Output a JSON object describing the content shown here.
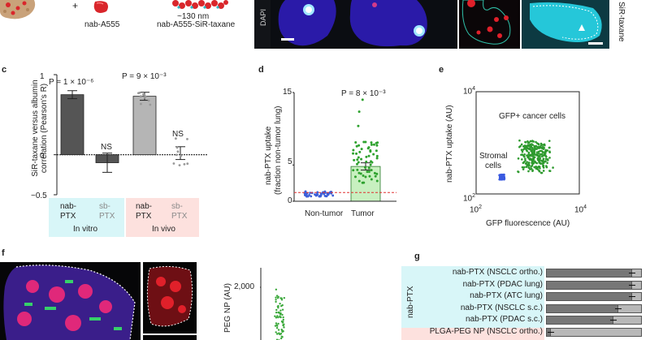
{
  "top": {
    "plus": "+",
    "label_a555": "nab-A555",
    "label_size": "~130 nm",
    "label_sir": "nab-A555-SiR-taxane",
    "dapi": "DAPI",
    "sir_side": "SiR-taxane",
    "colors": {
      "particle": "#d9262b",
      "blue_cell": "#2a1aa8",
      "dark_bg": "#121418",
      "cyan": "#25c7d9"
    }
  },
  "panel_c": {
    "letter": "c",
    "ylabel": "SiR-taxane versus albumin correlation (Pearson's R)",
    "p1": "P = 1 × 10⁻⁶",
    "p2": "P = 9 × 10⁻³",
    "ns1": "NS",
    "ns2": "NS",
    "groups": [
      {
        "l1": "nab-",
        "l2": "PTX"
      },
      {
        "l1": "sb-",
        "l2": "PTX"
      },
      {
        "l1": "nab-",
        "l2": "PTX"
      },
      {
        "l1": "sb-",
        "l2": "PTX"
      }
    ],
    "in_vitro": "In vitro",
    "in_vivo": "In vivo",
    "colors": {
      "in_vitro_bg": "#d8f6f8",
      "in_vivo_bg": "#fde1de",
      "bar_dark": "#555555",
      "bar_light": "#b5b5b5"
    },
    "chart_data": {
      "type": "bar",
      "categories": [
        "nab-PTX in vitro",
        "sb-PTX in vitro",
        "nab-PTX in vivo",
        "sb-PTX in vivo"
      ],
      "values": [
        0.75,
        -0.1,
        0.73,
        0.02
      ],
      "ylim": [
        -0.5,
        1
      ],
      "yticks": [
        "1",
        "0",
        "−0.5"
      ]
    }
  },
  "panel_d": {
    "letter": "d",
    "ylabel1": "nab-PTX uptake",
    "ylabel2": "(fraction non-tumor lung)",
    "p": "P = 8 × 10⁻³",
    "categories": [
      "Non-tumor",
      "Tumor"
    ],
    "yticks": [
      "15",
      "5",
      "0"
    ],
    "colors": {
      "non_tumor": "#3c5fd9",
      "tumor": "#2ea22e",
      "tumor_bar": "#c8f0c0",
      "threshold": "#e03030"
    },
    "chart_data": {
      "type": "bar",
      "categories": [
        "Non-tumor",
        "Tumor"
      ],
      "values": [
        1.0,
        4.8
      ],
      "ylim": [
        0,
        15
      ]
    }
  },
  "panel_e": {
    "letter": "e",
    "ylabel": "nab-PTX uptake (AU)",
    "xlabel": "GFP fluorescence (AU)",
    "cluster1": "GFP+ cancer cells",
    "cluster2a": "Stromal",
    "cluster2b": "cells",
    "yticks": {
      "top": "4",
      "bottom": "2"
    },
    "xticks": {
      "left": "2",
      "right": "4"
    },
    "tick_base": "10",
    "colors": {
      "gfp": "#2e9a2e",
      "stromal": "#3a5ae0"
    },
    "chart_data": {
      "type": "scatter",
      "series": [
        {
          "name": "GFP+ cancer cells",
          "x": [
            1000,
            1500,
            2000,
            2500,
            3000
          ],
          "y": [
            400,
            600,
            700,
            650,
            500
          ]
        },
        {
          "name": "Stromal cells",
          "x": [
            300,
            320,
            340
          ],
          "y": [
            220,
            230,
            240
          ]
        }
      ]
    }
  },
  "panel_f": {
    "letter": "f",
    "ylabel": "PEG NP (AU)",
    "ytick": "2,000"
  },
  "panel_g": {
    "letter": "g",
    "group_label": "nab-PTX",
    "rows": [
      {
        "label": "nab-PTX (NSCLC ortho.)",
        "value": 0.9
      },
      {
        "label": "nab-PTX (PDAC lung)",
        "value": 0.9
      },
      {
        "label": "nab-PTX (ATC lung)",
        "value": 0.9
      },
      {
        "label": "nab-PTX (NSCLC s.c.)",
        "value": 0.75
      },
      {
        "label": "nab-PTX (PDAC s.c.)",
        "value": 0.7
      },
      {
        "label": "PLGA-PEG NP (NSCLC ortho.)",
        "value": 0.05
      }
    ],
    "colors": {
      "bar_dark": "#777777",
      "bar_bg": "#b8b8b8",
      "nab_bg": "#d8f6f8",
      "plga_bg": "#fde1de"
    }
  }
}
